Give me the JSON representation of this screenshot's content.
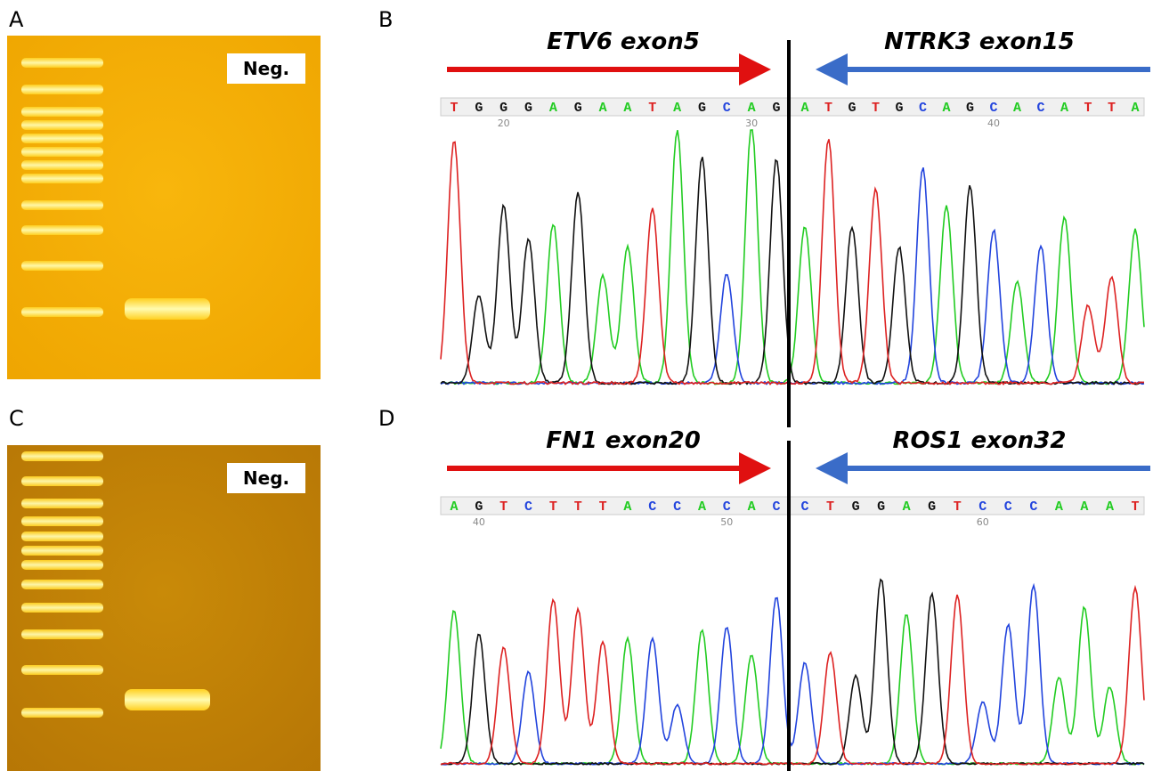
{
  "gels": [
    {
      "label": "A",
      "neg": "Neg."
    },
    {
      "label": "C",
      "neg": "Neg."
    }
  ],
  "sequencing": [
    {
      "label": "B",
      "left_gene": "ETV6 exon5",
      "right_gene": "NTRK3 exon15",
      "left_bases": [
        "T",
        "G",
        "G",
        "G",
        "A",
        "G",
        "A",
        "A",
        "T",
        "A",
        "G",
        "C",
        "A",
        "G"
      ],
      "right_bases": [
        "A",
        "T",
        "G",
        "T",
        "G",
        "C",
        "A",
        "G",
        "C",
        "A",
        "C",
        "A",
        "T",
        "T",
        "A"
      ],
      "ruler": [
        20,
        30,
        40
      ]
    },
    {
      "label": "D",
      "left_gene": "FN1 exon20",
      "right_gene": "ROS1 exon32",
      "left_bases": [
        "A",
        "G",
        "T",
        "C",
        "T",
        "T",
        "T",
        "A",
        "C",
        "C",
        "A",
        "C",
        "A",
        "C"
      ],
      "right_bases": [
        "C",
        "T",
        "G",
        "G",
        "A",
        "G",
        "T",
        "C",
        "C",
        "C",
        "A",
        "A",
        "A",
        "T"
      ],
      "ruler": [
        40,
        50,
        60
      ]
    }
  ],
  "base_colors": {
    "A": "#22cc22",
    "C": "#2244dd",
    "G": "#111111",
    "T": "#dd2222"
  }
}
